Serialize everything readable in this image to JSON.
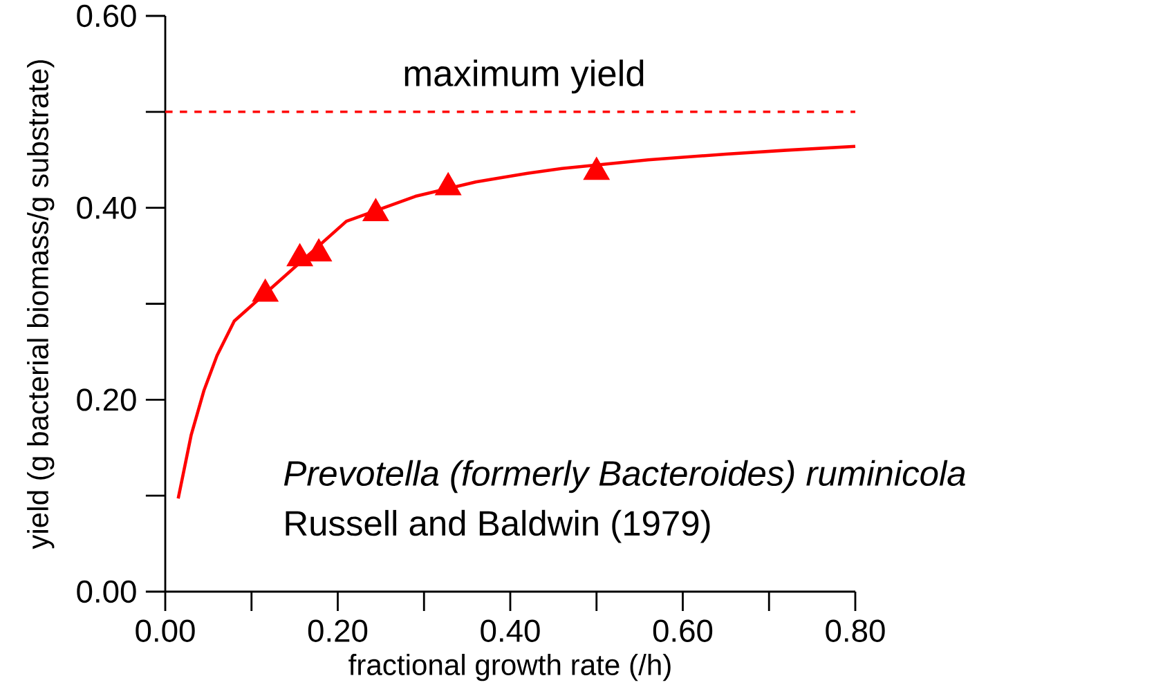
{
  "chart_data": {
    "type": "line",
    "xlabel": "fractional growth rate (/h)",
    "ylabel": "yield (g bacterial biomass/g substrate)",
    "xlim": [
      0,
      0.8
    ],
    "ylim": [
      0,
      0.6
    ],
    "xticks": [
      {
        "value": 0,
        "label": "0.00"
      },
      {
        "value": 0.2,
        "label": "0.20"
      },
      {
        "value": 0.4,
        "label": "0.40"
      },
      {
        "value": 0.6,
        "label": "0.60"
      },
      {
        "value": 0.8,
        "label": "0.80"
      }
    ],
    "yticks": [
      {
        "value": 0,
        "label": "0.00"
      },
      {
        "value": 0.2,
        "label": "0.20"
      },
      {
        "value": 0.4,
        "label": "0.40"
      },
      {
        "value": 0.6,
        "label": "0.60"
      }
    ],
    "series": [
      {
        "color": "#ff0000",
        "x": [
          0.015,
          0.03,
          0.045,
          0.06,
          0.08,
          0.21,
          0.29,
          0.36,
          0.42,
          0.46,
          0.56,
          0.65,
          0.72,
          0.8
        ],
        "values": [
          0.097,
          0.163,
          0.21,
          0.246,
          0.282,
          0.386,
          0.412,
          0.427,
          0.436,
          0.441,
          0.45,
          0.456,
          0.46,
          0.464
        ]
      },
      {
        "type": "scatter",
        "color": "#ff0000",
        "marker": "triangle",
        "x": [
          0.116,
          0.156,
          0.178,
          0.244,
          0.328,
          0.5
        ],
        "values": [
          0.314,
          0.351,
          0.356,
          0.398,
          0.425,
          0.441
        ]
      }
    ],
    "ref_lines": [
      {
        "axis": "y",
        "value": 0.5,
        "label": "maximum yield",
        "color": "#ff0000",
        "line_style": "dashed"
      }
    ],
    "annotations": [
      "*Prevotella (formerly Bacteroides) ruminicola*",
      "Russell and Baldwin (1979)"
    ]
  }
}
